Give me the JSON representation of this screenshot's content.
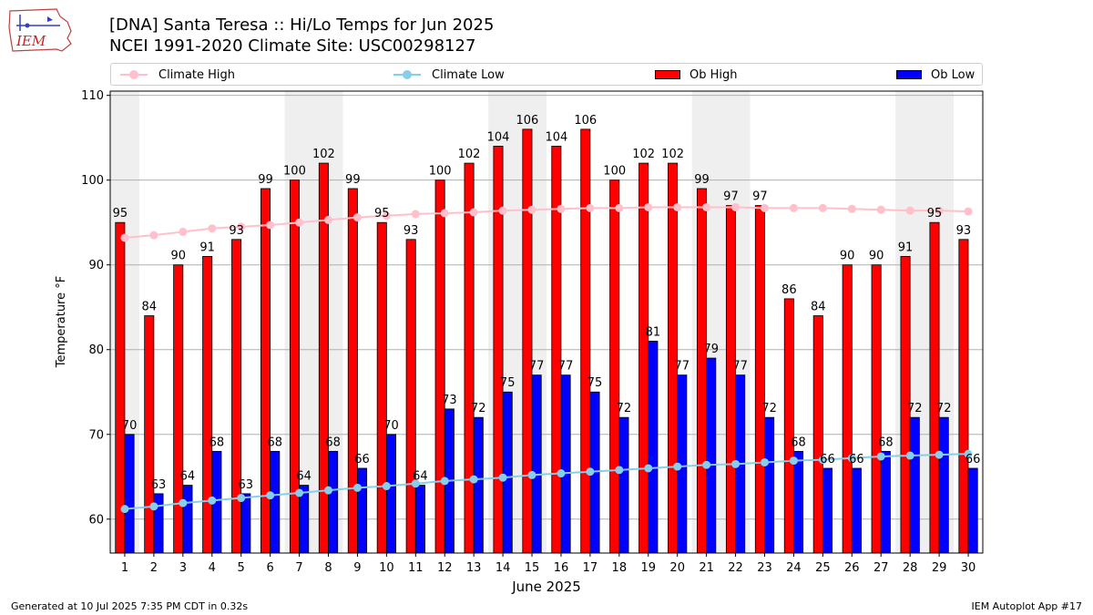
{
  "logo": {
    "text": "IEM"
  },
  "title_line1": "[DNA] Santa Teresa :: Hi/Lo Temps for Jun 2025",
  "title_line2": "NCEI 1991-2020 Climate Site: USC00298127",
  "footer_left": "Generated at 10 Jul 2025 7:35 PM CDT in 0.32s",
  "footer_right": "IEM Autoplot App #17",
  "colors": {
    "climate_high": "#ffc0cb",
    "climate_low": "#87ceeb",
    "ob_high": "#ff0000",
    "ob_low": "#0000ff",
    "weekend": "#efefef"
  },
  "chart_data": {
    "type": "bar",
    "xlabel": "June 2025",
    "ylabel": "Temperature °F",
    "ylim": [
      56,
      110.5
    ],
    "yticks": [
      60,
      70,
      80,
      90,
      100,
      110
    ],
    "legend_placement": "top, above plot",
    "grid": "horizontal",
    "categories": [
      "1",
      "2",
      "3",
      "4",
      "5",
      "6",
      "7",
      "8",
      "9",
      "10",
      "11",
      "12",
      "13",
      "14",
      "15",
      "16",
      "17",
      "18",
      "19",
      "20",
      "21",
      "22",
      "23",
      "24",
      "25",
      "26",
      "27",
      "28",
      "29",
      "30"
    ],
    "shaded_day_ranges": [
      [
        1,
        1
      ],
      [
        7,
        8
      ],
      [
        14,
        15
      ],
      [
        21,
        22
      ],
      [
        28,
        29
      ]
    ],
    "series": [
      {
        "name": "Climate High",
        "kind": "line",
        "values": [
          93.2,
          93.5,
          93.9,
          94.3,
          94.5,
          94.7,
          95.0,
          95.3,
          95.6,
          95.8,
          96.0,
          96.1,
          96.2,
          96.4,
          96.5,
          96.6,
          96.7,
          96.7,
          96.8,
          96.8,
          96.8,
          96.8,
          96.7,
          96.7,
          96.7,
          96.6,
          96.5,
          96.4,
          96.4,
          96.3
        ]
      },
      {
        "name": "Climate Low",
        "kind": "line",
        "values": [
          61.2,
          61.5,
          61.9,
          62.2,
          62.5,
          62.8,
          63.1,
          63.4,
          63.7,
          63.9,
          64.2,
          64.5,
          64.7,
          64.9,
          65.2,
          65.4,
          65.6,
          65.8,
          66.0,
          66.2,
          66.4,
          66.5,
          66.7,
          66.9,
          67.0,
          67.2,
          67.4,
          67.5,
          67.6,
          67.7
        ]
      },
      {
        "name": "Ob High",
        "kind": "bar",
        "values": [
          95,
          84,
          90,
          91,
          93,
          99,
          100,
          102,
          99,
          95,
          93,
          100,
          102,
          104,
          106,
          104,
          106,
          100,
          102,
          102,
          99,
          97,
          97,
          86,
          84,
          90,
          90,
          91,
          95,
          93
        ]
      },
      {
        "name": "Ob Low",
        "kind": "bar",
        "values": [
          70,
          63,
          64,
          68,
          63,
          68,
          64,
          68,
          66,
          70,
          64,
          73,
          72,
          75,
          77,
          77,
          75,
          72,
          81,
          77,
          79,
          77,
          72,
          68,
          66,
          66,
          68,
          72,
          72,
          66
        ]
      }
    ]
  }
}
